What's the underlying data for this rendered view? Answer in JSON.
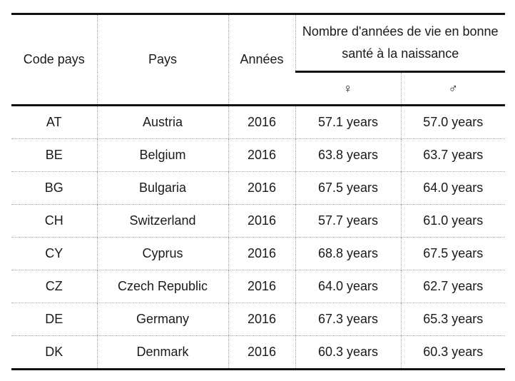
{
  "table": {
    "headers": {
      "code": "Code pays",
      "country": "Pays",
      "year": "Années",
      "group": "Nombre d'années de vie en bonne santé à la naissance",
      "female": "♀",
      "male": "♂"
    },
    "rows": [
      [
        "AT",
        "Austria",
        "2016",
        "57.1 years",
        "57.0 years"
      ],
      [
        "BE",
        "Belgium",
        "2016",
        "63.8 years",
        "63.7 years"
      ],
      [
        "BG",
        "Bulgaria",
        "2016",
        "67.5 years",
        "64.0 years"
      ],
      [
        "CH",
        "Switzerland",
        "2016",
        "57.7 years",
        "61.0 years"
      ],
      [
        "CY",
        "Cyprus",
        "2016",
        "68.8 years",
        "67.5 years"
      ],
      [
        "CZ",
        "Czech Republic",
        "2016",
        "64.0 years",
        "62.7 years"
      ],
      [
        "DE",
        "Germany",
        "2016",
        "67.3 years",
        "65.3 years"
      ],
      [
        "DK",
        "Denmark",
        "2016",
        "60.3 years",
        "60.3 years"
      ]
    ]
  }
}
